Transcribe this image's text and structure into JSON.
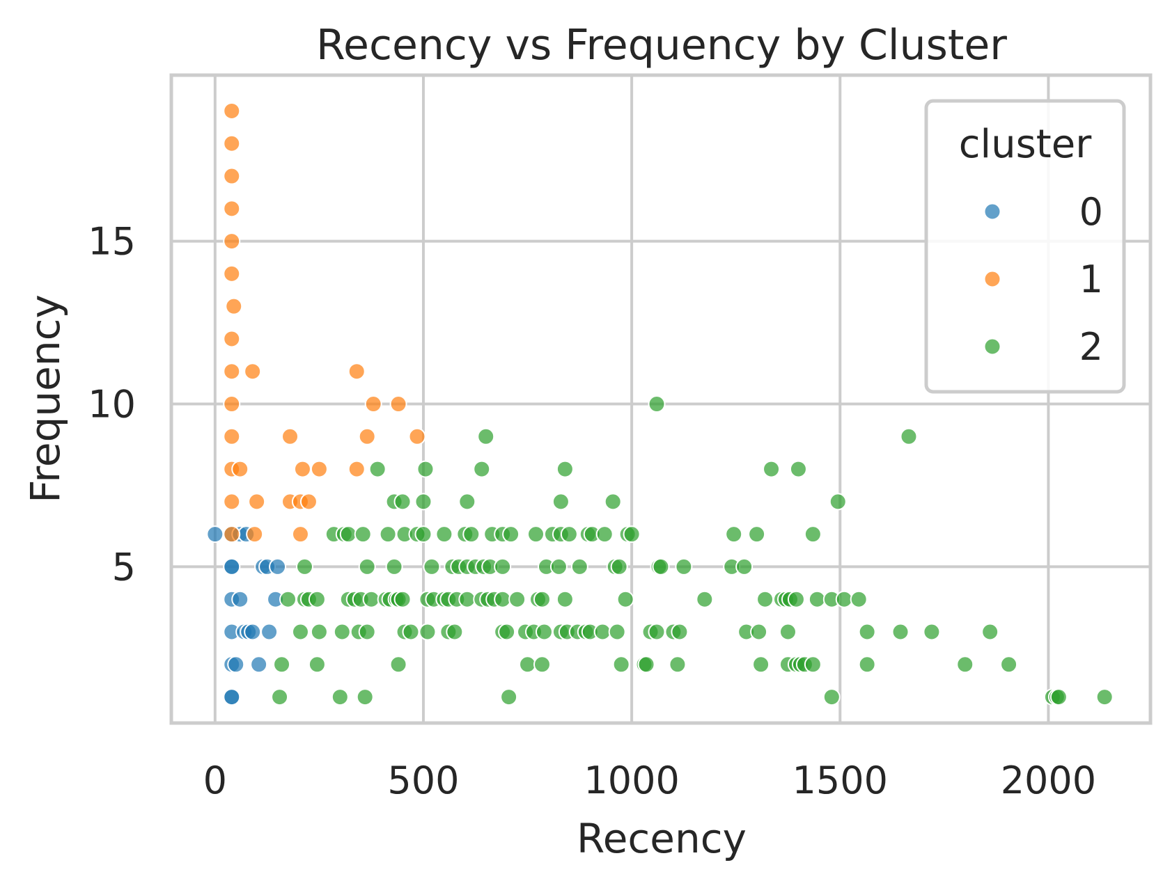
{
  "chart_data": {
    "type": "scatter",
    "title": "Recency vs Frequency by Cluster",
    "xlabel": "Recency",
    "ylabel": "Frequency",
    "xlim": [
      -105,
      2245
    ],
    "ylim": [
      0.2,
      20.1
    ],
    "xticks": [
      0,
      500,
      1000,
      1500,
      2000
    ],
    "yticks": [
      5,
      10,
      15
    ],
    "grid": true,
    "legend": {
      "title": "cluster",
      "placement": "top-right"
    },
    "series": [
      {
        "name": "0",
        "color": "#1f77b4",
        "points": [
          [
            0,
            6
          ],
          [
            40,
            6
          ],
          [
            60,
            6
          ],
          [
            75,
            6
          ],
          [
            40,
            5
          ],
          [
            40,
            5
          ],
          [
            115,
            5
          ],
          [
            125,
            5
          ],
          [
            150,
            5
          ],
          [
            40,
            4
          ],
          [
            60,
            4
          ],
          [
            145,
            4
          ],
          [
            40,
            3
          ],
          [
            70,
            3
          ],
          [
            80,
            3
          ],
          [
            90,
            3
          ],
          [
            130,
            3
          ],
          [
            40,
            2
          ],
          [
            50,
            2
          ],
          [
            105,
            2
          ],
          [
            40,
            1
          ],
          [
            40,
            1
          ]
        ]
      },
      {
        "name": "1",
        "color": "#ff7f0e",
        "points": [
          [
            40,
            19
          ],
          [
            40,
            18
          ],
          [
            40,
            17
          ],
          [
            40,
            16
          ],
          [
            40,
            15
          ],
          [
            40,
            14
          ],
          [
            45,
            13
          ],
          [
            40,
            12
          ],
          [
            40,
            11
          ],
          [
            90,
            11
          ],
          [
            340,
            11
          ],
          [
            40,
            10
          ],
          [
            380,
            10
          ],
          [
            440,
            10
          ],
          [
            40,
            9
          ],
          [
            180,
            9
          ],
          [
            365,
            9
          ],
          [
            485,
            9
          ],
          [
            40,
            8
          ],
          [
            60,
            8
          ],
          [
            210,
            8
          ],
          [
            250,
            8
          ],
          [
            340,
            8
          ],
          [
            40,
            7
          ],
          [
            100,
            7
          ],
          [
            180,
            7
          ],
          [
            205,
            7
          ],
          [
            225,
            7
          ],
          [
            95,
            6
          ],
          [
            205,
            6
          ],
          [
            40,
            6
          ]
        ]
      },
      {
        "name": "2",
        "color": "#2ca02c",
        "points": [
          [
            1060,
            10
          ],
          [
            650,
            9
          ],
          [
            1665,
            9
          ],
          [
            390,
            8
          ],
          [
            505,
            8
          ],
          [
            640,
            8
          ],
          [
            840,
            8
          ],
          [
            1335,
            8
          ],
          [
            1400,
            8
          ],
          [
            430,
            7
          ],
          [
            450,
            7
          ],
          [
            500,
            7
          ],
          [
            605,
            7
          ],
          [
            830,
            7
          ],
          [
            955,
            7
          ],
          [
            1495,
            7
          ],
          [
            285,
            6
          ],
          [
            310,
            6
          ],
          [
            320,
            6
          ],
          [
            355,
            6
          ],
          [
            415,
            6
          ],
          [
            455,
            6
          ],
          [
            485,
            6
          ],
          [
            500,
            6
          ],
          [
            550,
            6
          ],
          [
            600,
            6
          ],
          [
            615,
            6
          ],
          [
            665,
            6
          ],
          [
            690,
            6
          ],
          [
            710,
            6
          ],
          [
            770,
            6
          ],
          [
            810,
            6
          ],
          [
            830,
            6
          ],
          [
            850,
            6
          ],
          [
            895,
            6
          ],
          [
            905,
            6
          ],
          [
            935,
            6
          ],
          [
            990,
            6
          ],
          [
            1000,
            6
          ],
          [
            1245,
            6
          ],
          [
            1300,
            6
          ],
          [
            1435,
            6
          ],
          [
            215,
            5
          ],
          [
            365,
            5
          ],
          [
            430,
            5
          ],
          [
            520,
            5
          ],
          [
            570,
            5
          ],
          [
            585,
            5
          ],
          [
            605,
            5
          ],
          [
            625,
            5
          ],
          [
            645,
            5
          ],
          [
            660,
            5
          ],
          [
            690,
            5
          ],
          [
            795,
            5
          ],
          [
            825,
            5
          ],
          [
            875,
            5
          ],
          [
            960,
            5
          ],
          [
            970,
            5
          ],
          [
            1065,
            5
          ],
          [
            1070,
            5
          ],
          [
            1125,
            5
          ],
          [
            1240,
            5
          ],
          [
            1270,
            5
          ],
          [
            175,
            4
          ],
          [
            215,
            4
          ],
          [
            225,
            4
          ],
          [
            245,
            4
          ],
          [
            320,
            4
          ],
          [
            335,
            4
          ],
          [
            350,
            4
          ],
          [
            375,
            4
          ],
          [
            410,
            4
          ],
          [
            420,
            4
          ],
          [
            435,
            4
          ],
          [
            440,
            4
          ],
          [
            450,
            4
          ],
          [
            510,
            4
          ],
          [
            525,
            4
          ],
          [
            550,
            4
          ],
          [
            560,
            4
          ],
          [
            580,
            4
          ],
          [
            605,
            4
          ],
          [
            640,
            4
          ],
          [
            655,
            4
          ],
          [
            670,
            4
          ],
          [
            690,
            4
          ],
          [
            725,
            4
          ],
          [
            775,
            4
          ],
          [
            785,
            4
          ],
          [
            840,
            4
          ],
          [
            985,
            4
          ],
          [
            1175,
            4
          ],
          [
            1320,
            4
          ],
          [
            1360,
            4
          ],
          [
            1370,
            4
          ],
          [
            1380,
            4
          ],
          [
            1395,
            4
          ],
          [
            1445,
            4
          ],
          [
            1480,
            4
          ],
          [
            1510,
            4
          ],
          [
            1545,
            4
          ],
          [
            205,
            3
          ],
          [
            250,
            3
          ],
          [
            305,
            3
          ],
          [
            345,
            3
          ],
          [
            365,
            3
          ],
          [
            455,
            3
          ],
          [
            470,
            3
          ],
          [
            510,
            3
          ],
          [
            560,
            3
          ],
          [
            575,
            3
          ],
          [
            690,
            3
          ],
          [
            700,
            3
          ],
          [
            745,
            3
          ],
          [
            765,
            3
          ],
          [
            790,
            3
          ],
          [
            830,
            3
          ],
          [
            845,
            3
          ],
          [
            870,
            3
          ],
          [
            890,
            3
          ],
          [
            900,
            3
          ],
          [
            930,
            3
          ],
          [
            965,
            3
          ],
          [
            1045,
            3
          ],
          [
            1060,
            3
          ],
          [
            1100,
            3
          ],
          [
            1115,
            3
          ],
          [
            1275,
            3
          ],
          [
            1305,
            3
          ],
          [
            1375,
            3
          ],
          [
            1565,
            3
          ],
          [
            1645,
            3
          ],
          [
            1720,
            3
          ],
          [
            1860,
            3
          ],
          [
            160,
            2
          ],
          [
            245,
            2
          ],
          [
            440,
            2
          ],
          [
            750,
            2
          ],
          [
            785,
            2
          ],
          [
            975,
            2
          ],
          [
            1030,
            2
          ],
          [
            1035,
            2
          ],
          [
            1110,
            2
          ],
          [
            1310,
            2
          ],
          [
            1375,
            2
          ],
          [
            1395,
            2
          ],
          [
            1405,
            2
          ],
          [
            1415,
            2
          ],
          [
            1435,
            2
          ],
          [
            1565,
            2
          ],
          [
            1800,
            2
          ],
          [
            1905,
            2
          ],
          [
            155,
            1
          ],
          [
            300,
            1
          ],
          [
            360,
            1
          ],
          [
            705,
            1
          ],
          [
            1480,
            1
          ],
          [
            2010,
            1
          ],
          [
            2020,
            1
          ],
          [
            2025,
            1
          ],
          [
            2135,
            1
          ]
        ]
      }
    ]
  }
}
